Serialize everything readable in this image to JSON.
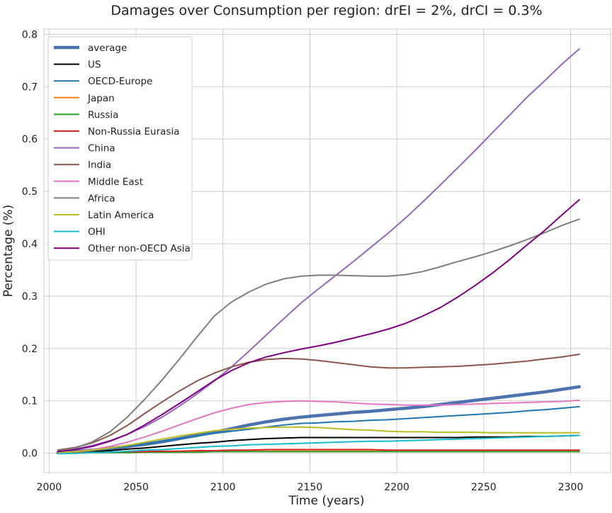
{
  "chart_data": {
    "type": "line",
    "title": "Damages over Consumption per region: drEI = 2%, drCI = 0.3%",
    "xlabel": "Time (years)",
    "ylabel": "Percentage (%)",
    "xlim": [
      1997,
      2323
    ],
    "ylim": [
      -0.037,
      0.81
    ],
    "x_ticks": [
      2000,
      2050,
      2100,
      2150,
      2200,
      2250,
      2300
    ],
    "x_tick_labels": [
      "2000",
      "2050",
      "2100",
      "2150",
      "2200",
      "2250",
      "2300"
    ],
    "y_ticks": [
      0.0,
      0.1,
      0.2,
      0.3,
      0.4,
      0.5,
      0.6,
      0.7,
      0.8
    ],
    "y_tick_labels": [
      "0.0",
      "0.1",
      "0.2",
      "0.3",
      "0.4",
      "0.5",
      "0.6",
      "0.7",
      "0.8"
    ],
    "grid": true,
    "legend_position": "top-left",
    "x": [
      2005,
      2015,
      2025,
      2035,
      2045,
      2055,
      2065,
      2075,
      2085,
      2095,
      2105,
      2115,
      2125,
      2135,
      2145,
      2155,
      2165,
      2175,
      2185,
      2195,
      2205,
      2215,
      2225,
      2235,
      2245,
      2255,
      2265,
      2275,
      2285,
      2295,
      2305
    ],
    "series": [
      {
        "name": "average",
        "color": "#4c72b0",
        "width": 4.5,
        "values": [
          0.001,
          0.003,
          0.006,
          0.009,
          0.013,
          0.017,
          0.022,
          0.028,
          0.034,
          0.04,
          0.047,
          0.054,
          0.06,
          0.065,
          0.069,
          0.072,
          0.075,
          0.078,
          0.08,
          0.083,
          0.086,
          0.089,
          0.093,
          0.097,
          0.101,
          0.105,
          0.109,
          0.113,
          0.117,
          0.122,
          0.127
        ]
      },
      {
        "name": "US",
        "color": "#000000",
        "width": 2,
        "values": [
          0.0,
          0.002,
          0.003,
          0.005,
          0.008,
          0.01,
          0.013,
          0.016,
          0.019,
          0.021,
          0.024,
          0.026,
          0.028,
          0.029,
          0.03,
          0.03,
          0.03,
          0.03,
          0.03,
          0.03,
          0.03,
          0.03,
          0.03,
          0.03,
          0.031,
          0.031,
          0.031,
          0.032,
          0.032,
          0.033,
          0.034
        ]
      },
      {
        "name": "OECD-Europe",
        "color": "#1f77b4",
        "width": 2,
        "values": [
          0.0,
          0.002,
          0.005,
          0.009,
          0.013,
          0.018,
          0.023,
          0.028,
          0.033,
          0.038,
          0.042,
          0.046,
          0.05,
          0.054,
          0.057,
          0.058,
          0.06,
          0.061,
          0.063,
          0.064,
          0.066,
          0.068,
          0.07,
          0.072,
          0.074,
          0.076,
          0.078,
          0.081,
          0.083,
          0.086,
          0.089
        ]
      },
      {
        "name": "Japan",
        "color": "#ff7f0e",
        "width": 2,
        "values": [
          0.0,
          0.001,
          0.001,
          0.002,
          0.002,
          0.003,
          0.003,
          0.003,
          0.004,
          0.004,
          0.004,
          0.004,
          0.004,
          0.004,
          0.004,
          0.004,
          0.004,
          0.004,
          0.004,
          0.004,
          0.004,
          0.004,
          0.004,
          0.004,
          0.004,
          0.004,
          0.004,
          0.004,
          0.004,
          0.004,
          0.004
        ]
      },
      {
        "name": "Russia",
        "color": "#2ca02c",
        "width": 2,
        "values": [
          0.0,
          0.0,
          0.001,
          0.001,
          0.001,
          0.002,
          0.002,
          0.002,
          0.002,
          0.003,
          0.003,
          0.003,
          0.003,
          0.003,
          0.003,
          0.003,
          0.003,
          0.003,
          0.003,
          0.003,
          0.003,
          0.003,
          0.003,
          0.003,
          0.003,
          0.003,
          0.003,
          0.003,
          0.003,
          0.003,
          0.003
        ]
      },
      {
        "name": "Non-Russia Eurasia",
        "color": "#d62728",
        "width": 2,
        "values": [
          0.0,
          0.001,
          0.001,
          0.002,
          0.003,
          0.003,
          0.004,
          0.004,
          0.005,
          0.005,
          0.006,
          0.006,
          0.007,
          0.007,
          0.007,
          0.007,
          0.007,
          0.007,
          0.007,
          0.006,
          0.006,
          0.006,
          0.006,
          0.006,
          0.006,
          0.006,
          0.006,
          0.006,
          0.006,
          0.006,
          0.006
        ]
      },
      {
        "name": "China",
        "color": "#9467bd",
        "width": 2,
        "values": [
          0.004,
          0.008,
          0.015,
          0.024,
          0.036,
          0.051,
          0.069,
          0.09,
          0.113,
          0.138,
          0.165,
          0.195,
          0.226,
          0.257,
          0.287,
          0.314,
          0.34,
          0.366,
          0.393,
          0.42,
          0.449,
          0.48,
          0.512,
          0.545,
          0.578,
          0.612,
          0.646,
          0.68,
          0.711,
          0.743,
          0.772
        ]
      },
      {
        "name": "India",
        "color": "#8c564b",
        "width": 2,
        "values": [
          0.006,
          0.011,
          0.02,
          0.034,
          0.053,
          0.076,
          0.098,
          0.119,
          0.138,
          0.153,
          0.165,
          0.174,
          0.179,
          0.181,
          0.18,
          0.177,
          0.173,
          0.169,
          0.165,
          0.163,
          0.163,
          0.164,
          0.165,
          0.166,
          0.168,
          0.17,
          0.173,
          0.176,
          0.18,
          0.184,
          0.189
        ]
      },
      {
        "name": "Middle East",
        "color": "#e377c2",
        "width": 2,
        "values": [
          0.001,
          0.003,
          0.007,
          0.013,
          0.021,
          0.031,
          0.042,
          0.054,
          0.066,
          0.077,
          0.086,
          0.093,
          0.097,
          0.099,
          0.1,
          0.099,
          0.098,
          0.096,
          0.094,
          0.093,
          0.092,
          0.092,
          0.092,
          0.093,
          0.094,
          0.095,
          0.096,
          0.097,
          0.098,
          0.099,
          0.101
        ]
      },
      {
        "name": "Africa",
        "color": "#7f7f7f",
        "width": 2,
        "values": [
          0.004,
          0.01,
          0.022,
          0.041,
          0.069,
          0.103,
          0.14,
          0.18,
          0.222,
          0.262,
          0.289,
          0.308,
          0.323,
          0.333,
          0.338,
          0.34,
          0.34,
          0.339,
          0.338,
          0.338,
          0.341,
          0.347,
          0.356,
          0.366,
          0.375,
          0.385,
          0.396,
          0.408,
          0.421,
          0.435,
          0.447
        ]
      },
      {
        "name": "Latin America",
        "color": "#bcbd22",
        "width": 2,
        "values": [
          0.001,
          0.003,
          0.006,
          0.01,
          0.015,
          0.021,
          0.027,
          0.033,
          0.038,
          0.043,
          0.046,
          0.048,
          0.049,
          0.05,
          0.05,
          0.049,
          0.047,
          0.045,
          0.044,
          0.042,
          0.041,
          0.041,
          0.04,
          0.04,
          0.04,
          0.039,
          0.039,
          0.039,
          0.039,
          0.039,
          0.039
        ]
      },
      {
        "name": "OHI",
        "color": "#17becf",
        "width": 2,
        "values": [
          -0.001,
          0.0,
          0.001,
          0.002,
          0.004,
          0.006,
          0.007,
          0.009,
          0.011,
          0.013,
          0.014,
          0.016,
          0.017,
          0.018,
          0.019,
          0.02,
          0.021,
          0.022,
          0.023,
          0.023,
          0.024,
          0.025,
          0.026,
          0.027,
          0.028,
          0.029,
          0.03,
          0.031,
          0.032,
          0.033,
          0.034
        ]
      },
      {
        "name": "Other non-OECD Asia",
        "color": "#800080",
        "width": 2,
        "values": [
          0.003,
          0.007,
          0.013,
          0.023,
          0.036,
          0.054,
          0.074,
          0.095,
          0.117,
          0.139,
          0.158,
          0.173,
          0.184,
          0.192,
          0.199,
          0.205,
          0.212,
          0.22,
          0.228,
          0.237,
          0.248,
          0.262,
          0.278,
          0.298,
          0.32,
          0.344,
          0.37,
          0.398,
          0.425,
          0.455,
          0.484
        ]
      }
    ]
  }
}
